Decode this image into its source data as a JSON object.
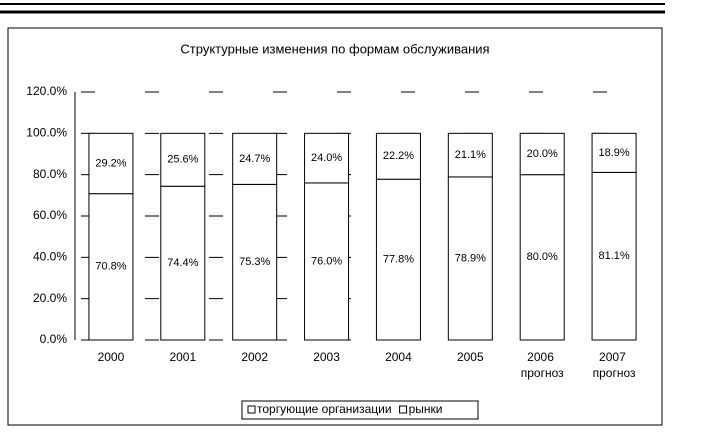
{
  "chart_data": {
    "type": "stacked_bar",
    "title": "Структурные изменения по формам обслуживания",
    "categories": [
      "2000",
      "2001",
      "2002",
      "2003",
      "2004",
      "2005",
      "2006 прогноз",
      "2007 прогноз"
    ],
    "series": [
      {
        "name": "торгующие организации",
        "color": "#ffffff",
        "values": [
          70.8,
          74.4,
          75.3,
          76.0,
          77.8,
          78.9,
          80.0,
          81.1
        ],
        "value_labels": [
          "70.8%",
          "74.4%",
          "75.3%",
          "76.0%",
          "77.8%",
          "78.9%",
          "80.0%",
          "81.1%"
        ]
      },
      {
        "name": "рынки",
        "color": "#ffffff",
        "values": [
          29.2,
          25.6,
          24.7,
          24.0,
          22.2,
          21.1,
          20.0,
          18.9
        ],
        "value_labels": [
          "29.2%",
          "25.6%",
          "24.7%",
          "24.0%",
          "22.2%",
          "21.1%",
          "20.0%",
          "18.9%"
        ]
      }
    ],
    "ylim": [
      0,
      120
    ],
    "yticks": [
      {
        "value": 0,
        "label": "0.0%"
      },
      {
        "value": 20,
        "label": "20.0%"
      },
      {
        "value": 40,
        "label": "40.0%"
      },
      {
        "value": 60,
        "label": "60.0%"
      },
      {
        "value": 80,
        "label": "80.0%"
      },
      {
        "value": 100,
        "label": "100.0%"
      },
      {
        "value": 120,
        "label": "120.0%"
      }
    ],
    "grid": true
  }
}
